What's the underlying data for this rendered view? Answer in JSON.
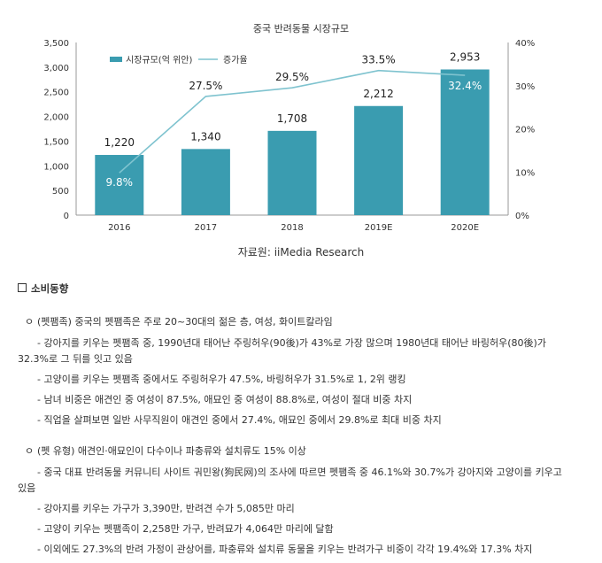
{
  "chart_data": {
    "type": "bar",
    "title": "중국 반려동물 시장규모",
    "categories": [
      "2016",
      "2017",
      "2018",
      "2019E",
      "2020E"
    ],
    "series": [
      {
        "name": "시장규모(억 위안)",
        "type": "bar",
        "axis": "left",
        "values": [
          1220,
          1340,
          1708,
          2212,
          2953
        ],
        "labels": [
          "1,220",
          "1,340",
          "1,708",
          "2,212",
          "2,953"
        ]
      },
      {
        "name": "증가율",
        "type": "line",
        "axis": "right",
        "values": [
          9.8,
          27.5,
          29.5,
          33.5,
          32.4
        ],
        "labels": [
          "9.8%",
          "27.5%",
          "29.5%",
          "33.5%",
          "32.4%"
        ]
      }
    ],
    "left_axis": {
      "ylim": [
        0,
        3500
      ],
      "ticks": [
        "0",
        "500",
        "1,000",
        "1,500",
        "2,000",
        "2,500",
        "3,000",
        "3,500"
      ]
    },
    "right_axis": {
      "ylim": [
        0,
        40
      ],
      "ticks": [
        "0%",
        "10%",
        "20%",
        "30%",
        "40%"
      ]
    },
    "legend_position": "top-left",
    "grid": false,
    "colors": {
      "bar": "#3a9cb0",
      "line": "#7fc3cf"
    }
  },
  "source": "자료원: iiMedia Research",
  "doc": {
    "section_title": "소비동향",
    "groups": [
      {
        "heading": "(펫팸족) 중국의 펫팸족은 주로 20~30대의 젊은 층, 여성, 화이트칼라임",
        "lines": [
          "- 강아지를 키우는 펫팸족 중, 1990년대 태어난 주링허우(90後)가 43%로 가장 많으며 1980년대 태어난 바링허우(80後)가",
          "32.3%로 그 뒤를 잇고 있음",
          "- 고양이를 키우는 펫팸족 중에서도 주링허우가 47.5%, 바링허우가 31.5%로 1, 2위 랭킹",
          "- 남녀 비중은 애견인 중 여성이 87.5%, 애묘인 중 여성이 88.8%로, 여성이 절대 비중 차지",
          "- 직업을 살펴보면 일반 사무직원이 애견인 중에서 27.4%, 애묘인 중에서 29.8%로 최대 비중 차지"
        ]
      },
      {
        "heading": "(펫 유형) 애견인·애묘인이 다수이나 파충류와 설치류도 15% 이상",
        "lines": [
          "- 중국 대표 반려동물 커뮤니티 사이트 궈민왕(狗民网)의 조사에 따르면 펫팸족 중 46.1%와 30.7%가 강아지와 고양이를 키우고",
          "있음",
          "- 강아지를 키우는 가구가 3,390만, 반려견 수가 5,085만 마리",
          "- 고양이 키우는 펫팸족이 2,258만 가구, 반려묘가 4,064만 마리에 달함",
          "- 이외에도 27.3%의 반려 가정이 관상어를, 파충류와 설치류 동물을 키우는 반려가구 비중이 각각 19.4%와 17.3% 차지"
        ]
      }
    ]
  }
}
